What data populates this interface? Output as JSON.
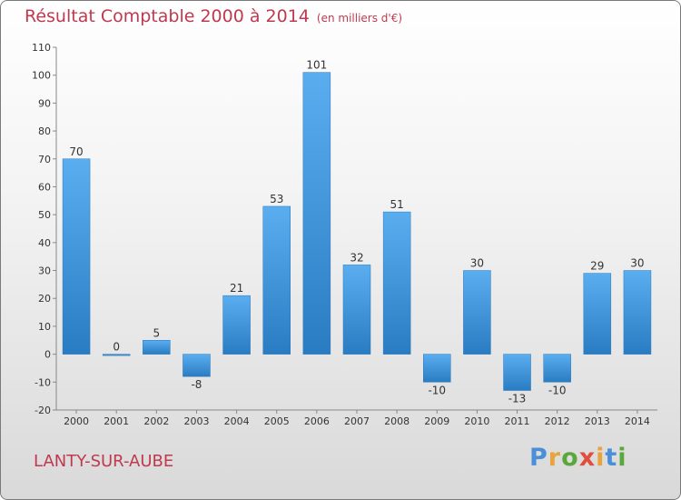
{
  "header": {
    "title": "Résultat Comptable 2000 à 2014",
    "unit": "(en milliers d'€)"
  },
  "footer": {
    "place": "LANTY-SUR-AUBE",
    "logo_letters": [
      "P",
      "r",
      "o",
      "x",
      "i",
      "t",
      "i"
    ],
    "logo_colors": [
      "#4a90d9",
      "#e8a33a",
      "#5aa83c",
      "#e04e3c",
      "#e8a33a",
      "#4a90d9",
      "#5aa83c"
    ]
  },
  "chart_data": {
    "type": "bar",
    "categories": [
      "2000",
      "2001",
      "2002",
      "2003",
      "2004",
      "2005",
      "2006",
      "2007",
      "2008",
      "2009",
      "2010",
      "2011",
      "2012",
      "2013",
      "2014"
    ],
    "values": [
      70,
      0,
      5,
      -8,
      21,
      53,
      101,
      32,
      51,
      -10,
      30,
      -13,
      -10,
      29,
      30
    ],
    "value_labels": [
      "70",
      "0",
      "5",
      "-8",
      "21",
      "53",
      "101",
      "32",
      "51",
      "-10",
      "30",
      "-13",
      "-10",
      "29",
      "30"
    ],
    "title": "Résultat Comptable 2000 à 2014",
    "xlabel": "",
    "ylabel": "",
    "ylim": [
      -20,
      110
    ],
    "yticks": [
      -20,
      -10,
      0,
      10,
      20,
      30,
      40,
      50,
      60,
      70,
      80,
      90,
      100,
      110
    ],
    "grid": false,
    "bar_color": "#3a8fd4"
  }
}
